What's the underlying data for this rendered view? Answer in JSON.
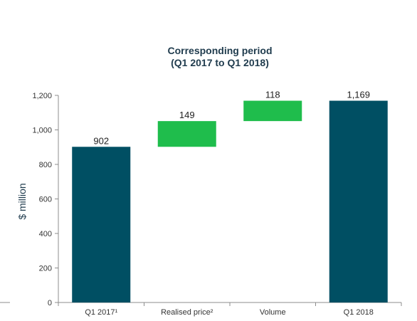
{
  "chart_data": {
    "type": "bar",
    "subtype": "waterfall",
    "title": "Corresponding period",
    "subtitle": "(Q1 2017 to Q1 2018)",
    "ylabel": "$ million",
    "xlabel": "",
    "ylim": [
      0,
      1200
    ],
    "yticks": [
      0,
      200,
      400,
      600,
      800,
      1000,
      1200
    ],
    "ytick_labels": [
      "0",
      "200",
      "400",
      "600",
      "800",
      "1,000",
      "1,200"
    ],
    "categories": [
      "Q1 2017¹",
      "Realised price²",
      "Volume",
      "Q1 2018"
    ],
    "bars": [
      {
        "category": "Q1 2017¹",
        "kind": "total",
        "base": 0,
        "value": 902,
        "label": "902"
      },
      {
        "category": "Realised price²",
        "kind": "increase",
        "base": 902,
        "value": 149,
        "label": "149"
      },
      {
        "category": "Volume",
        "kind": "increase",
        "base": 1051,
        "value": 118,
        "label": "118"
      },
      {
        "category": "Q1 2018",
        "kind": "total",
        "base": 0,
        "value": 1169,
        "label": "1,169"
      }
    ],
    "grid": false,
    "legend": "none",
    "colors": {
      "total": "#004f63",
      "increase": "#1fbd4c",
      "axis": "#8c8c8c"
    }
  }
}
